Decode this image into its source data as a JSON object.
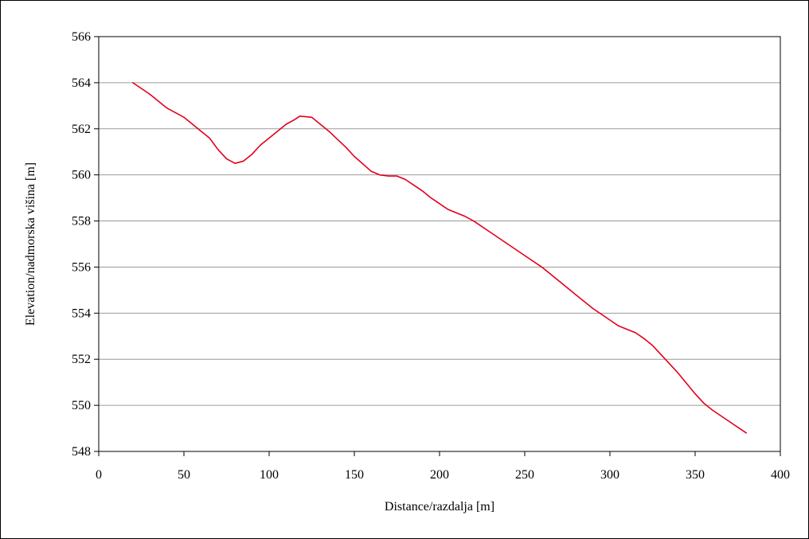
{
  "chart_data": {
    "type": "line",
    "title": "",
    "xlabel": "Distance/razdalja [m]",
    "ylabel": "Elevation/nadmorska višina [m]",
    "xlim": [
      0,
      400
    ],
    "ylim": [
      548,
      566
    ],
    "x_ticks": [
      "0",
      "50",
      "100",
      "150",
      "200",
      "250",
      "300",
      "350",
      "400"
    ],
    "y_ticks": [
      "548",
      "550",
      "552",
      "554",
      "556",
      "558",
      "560",
      "562",
      "564",
      "566"
    ],
    "grid": "horizontal",
    "legend": "none",
    "series": [
      {
        "color": "#e2001a",
        "x": [
          20,
          30,
          40,
          50,
          55,
          60,
          65,
          70,
          75,
          80,
          85,
          90,
          95,
          100,
          105,
          110,
          115,
          118,
          125,
          135,
          145,
          150,
          160,
          165,
          170,
          175,
          180,
          185,
          190,
          195,
          200,
          205,
          210,
          215,
          220,
          230,
          240,
          250,
          260,
          270,
          280,
          290,
          300,
          305,
          310,
          315,
          320,
          325,
          330,
          340,
          350,
          355,
          360,
          370,
          380
        ],
        "y": [
          564.0,
          563.5,
          562.9,
          562.5,
          562.2,
          561.9,
          561.6,
          561.1,
          560.7,
          560.5,
          560.6,
          560.9,
          561.3,
          561.6,
          561.9,
          562.2,
          562.4,
          562.55,
          562.5,
          561.9,
          561.2,
          560.8,
          560.15,
          560.0,
          559.95,
          559.95,
          559.8,
          559.55,
          559.3,
          559.0,
          558.75,
          558.5,
          558.35,
          558.2,
          558.0,
          557.5,
          557.0,
          556.5,
          556.0,
          555.4,
          554.8,
          554.2,
          553.7,
          553.45,
          553.3,
          553.15,
          552.9,
          552.6,
          552.2,
          551.4,
          550.5,
          550.1,
          549.8,
          549.3,
          548.8
        ]
      }
    ]
  }
}
